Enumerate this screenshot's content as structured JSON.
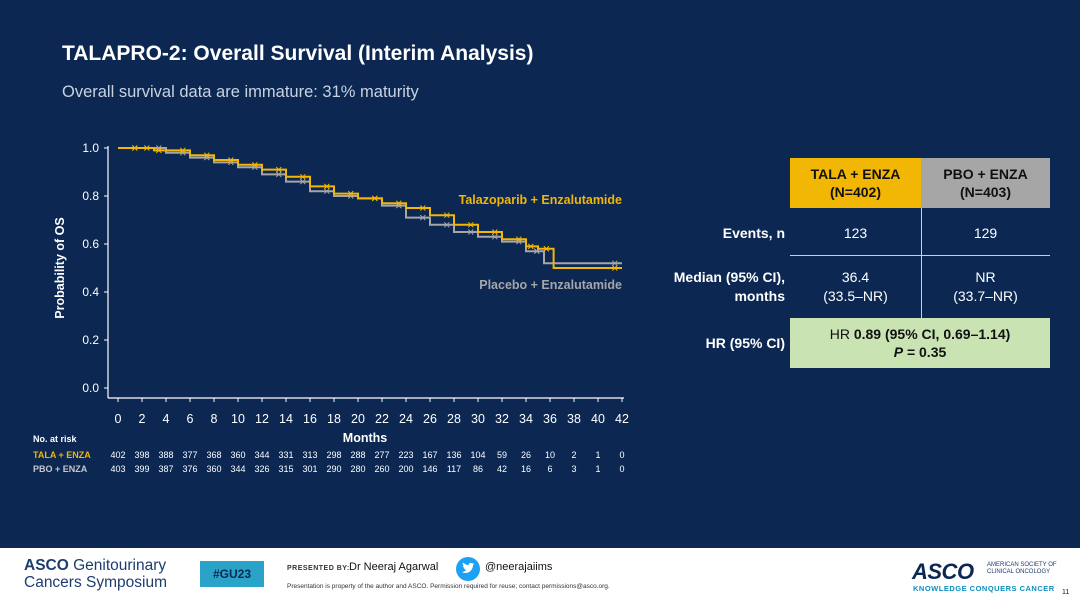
{
  "slide": {
    "title": "TALAPRO-2: Overall Survival (Interim Analysis)",
    "subtitle": "Overall survival data are immature: 31% maturity"
  },
  "chart_data": {
    "type": "line",
    "ylabel": "Probability of OS",
    "xlabel": "Months",
    "xlim": [
      0,
      42
    ],
    "ylim": [
      0,
      1
    ],
    "x_ticks": [
      0,
      2,
      4,
      6,
      8,
      10,
      12,
      14,
      16,
      18,
      20,
      22,
      24,
      26,
      28,
      30,
      32,
      34,
      36,
      38,
      40,
      42
    ],
    "y_ticks": [
      0.0,
      0.2,
      0.4,
      0.6,
      0.8,
      1.0
    ],
    "y_tick_labels": [
      "0.0",
      "0.2",
      "0.4",
      "0.6",
      "0.8",
      "1.0"
    ],
    "series": [
      {
        "name": "Talazoparib + Enzalutamide",
        "color": "#f2b705",
        "x": [
          0,
          2,
          3,
          4,
          6,
          8,
          10,
          12,
          14,
          16,
          18,
          20,
          22,
          24,
          26,
          28,
          30,
          32,
          34,
          35,
          36.3,
          36.3,
          42
        ],
        "y": [
          1.0,
          1.0,
          0.99,
          0.99,
          0.97,
          0.95,
          0.93,
          0.91,
          0.88,
          0.84,
          0.81,
          0.79,
          0.77,
          0.75,
          0.72,
          0.68,
          0.65,
          0.62,
          0.59,
          0.58,
          0.58,
          0.5,
          0.5
        ]
      },
      {
        "name": "Placebo + Enzalutamide",
        "color": "#a6a6a6",
        "x": [
          0,
          2,
          4,
          6,
          8,
          10,
          12,
          14,
          16,
          18,
          20,
          22,
          24,
          26,
          28,
          30,
          32,
          34,
          35.5,
          35.5,
          42
        ],
        "y": [
          1.0,
          1.0,
          0.98,
          0.96,
          0.94,
          0.92,
          0.89,
          0.86,
          0.82,
          0.8,
          0.79,
          0.76,
          0.71,
          0.68,
          0.65,
          0.63,
          0.61,
          0.57,
          0.57,
          0.52,
          0.52
        ]
      }
    ],
    "series_labels": [
      "Talazoparib + Enzalutamide",
      "Placebo + Enzalutamide"
    ],
    "risk_table": {
      "title": "No. at risk",
      "rows": [
        {
          "label": "TALA + ENZA",
          "color": "#f2b705",
          "values": [
            "402",
            "398",
            "388",
            "377",
            "368",
            "360",
            "344",
            "331",
            "313",
            "298",
            "288",
            "277",
            "223",
            "167",
            "136",
            "104",
            "59",
            "26",
            "10",
            "2",
            "1",
            "0"
          ]
        },
        {
          "label": "PBO + ENZA",
          "color": "#c8c8c8",
          "values": [
            "403",
            "399",
            "387",
            "376",
            "360",
            "344",
            "326",
            "315",
            "301",
            "290",
            "280",
            "260",
            "200",
            "146",
            "117",
            "86",
            "42",
            "16",
            "6",
            "3",
            "1",
            "0"
          ]
        }
      ]
    }
  },
  "summary_table": {
    "col1_header_line1": "TALA + ENZA",
    "col1_header_line2": "(N=402)",
    "col2_header_line1": "PBO + ENZA",
    "col2_header_line2": "(N=403)",
    "col1_color": "#f2b705",
    "col2_color": "#a6a6a6",
    "events_label": "Events, n",
    "events_tala": "123",
    "events_pbo": "129",
    "median_label_line1": "Median (95% CI),",
    "median_label_line2": "months",
    "median_tala_line1": "36.4",
    "median_tala_line2": "(33.5–NR)",
    "median_pbo_line1": "NR",
    "median_pbo_line2": "(33.7–NR)",
    "hr_label": "HR (95% CI)",
    "hr_line1_prefix": "HR ",
    "hr_line1_value": "0.89 (95% CI, 0.69–1.14)",
    "hr_line2_p": "P",
    "hr_line2_value": " = 0.35"
  },
  "footer": {
    "asco_prefix": "ASCO",
    "asco_suffix": " Genitourinary",
    "symposium": "Cancers Symposium",
    "hashtag": "#GU23",
    "presented_by": "PRESENTED BY:",
    "presenter": "Dr Neeraj Agarwal",
    "twitter": "@neerajaiims",
    "property_note": "Presentation is property of the author and ASCO. Permission required for reuse; contact permissions@asco.org.",
    "asco_logo": "ASCO",
    "asco_full_line1": "AMERICAN SOCIETY OF",
    "asco_full_line2": "CLINICAL ONCOLOGY",
    "tagline": "KNOWLEDGE CONQUERS CANCER",
    "page_number": "11"
  }
}
